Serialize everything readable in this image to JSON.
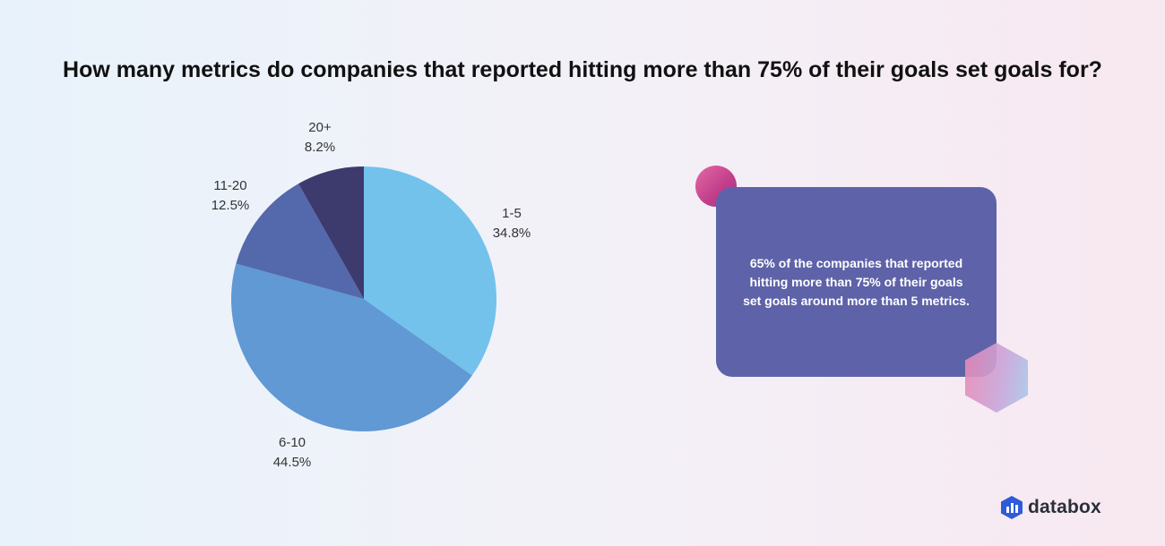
{
  "chart_data": {
    "type": "pie",
    "title": "How many metrics do companies that reported hitting more than 75% of their goals set goals for?",
    "slices": [
      {
        "label": "1-5",
        "value": 34.8,
        "value_label": "34.8%",
        "color": "#72c2ec"
      },
      {
        "label": "6-10",
        "value": 44.5,
        "value_label": "44.5%",
        "color": "#6099d3"
      },
      {
        "label": "11-20",
        "value": 12.5,
        "value_label": "12.5%",
        "color": "#5468ac"
      },
      {
        "label": "20+",
        "value": 8.2,
        "value_label": "8.2%",
        "color": "#3d3a6e"
      }
    ]
  },
  "callout": {
    "text": "65% of the companies that reported hitting more than 75% of their goals set goals around more than 5 metrics."
  },
  "branding": {
    "name": "databox",
    "logo_icon": "databox-hexagon-bars-icon",
    "color": "#2f5bd8"
  }
}
